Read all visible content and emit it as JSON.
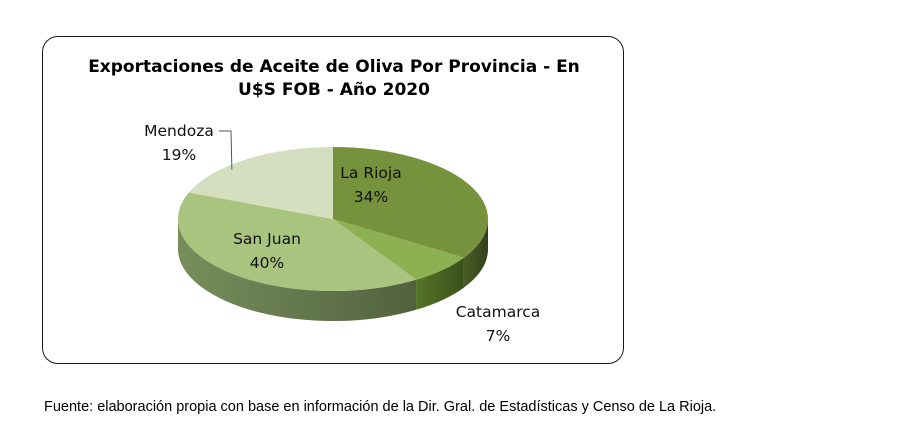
{
  "chart_data": {
    "type": "pie",
    "title_line1": "Exportaciones de Aceite de Oliva Por Provincia - En",
    "title_line2": "U$S FOB - Año 2020",
    "slices": [
      {
        "name": "La Rioja",
        "value": 34,
        "label": "34%",
        "color": "#76923c",
        "side": "#4f6228"
      },
      {
        "name": "Catamarca",
        "value": 7,
        "label": "7%",
        "color": "#8db052",
        "side": "#5a7a2a"
      },
      {
        "name": "San Juan",
        "value": 40,
        "label": "40%",
        "color": "#a9c47f",
        "side": "#7d9660"
      },
      {
        "name": "Mendoza",
        "value": 19,
        "label": "19%",
        "color": "#d4dfc0",
        "side": "#a6b493"
      }
    ]
  },
  "source": "Fuente: elaboración propia con base en información de la Dir. Gral. de Estadísticas y Censo de La Rioja."
}
